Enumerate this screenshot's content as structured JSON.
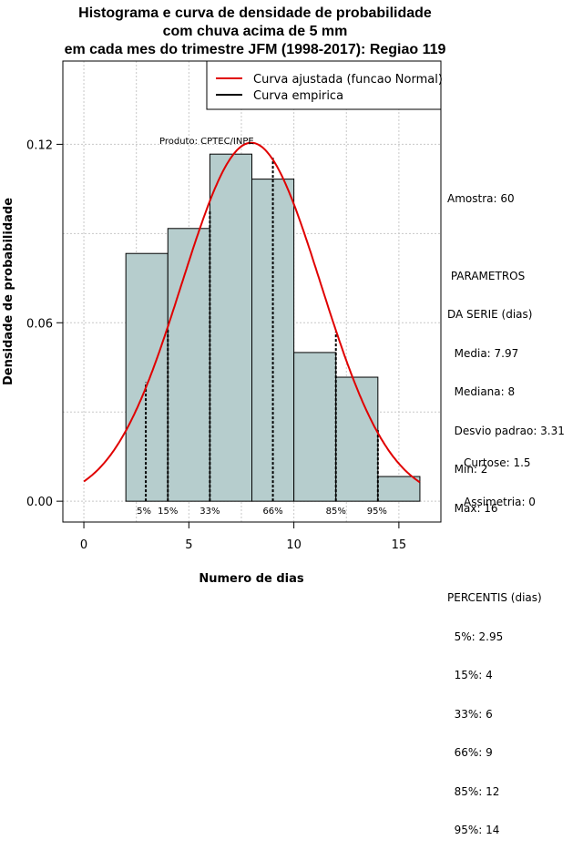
{
  "chart_data": {
    "type": "bar",
    "title": [
      "Histograma e curva de densidade de probabilidade",
      "com chuva acima de 5 mm",
      "em cada mes do trimestre JFM (1998-2017): Regiao 119"
    ],
    "xlabel": "Numero de dias",
    "ylabel": "Densidade de probabilidade",
    "xlim": [
      -1,
      17
    ],
    "ylim": [
      -0.007,
      0.148
    ],
    "x_ticks": [
      0,
      5,
      10,
      15
    ],
    "y_ticks": [
      0.0,
      0.06,
      0.12
    ],
    "y_tick_labels": [
      "0.00",
      "0.06",
      "0.12"
    ],
    "grid": true,
    "bins": [
      {
        "from": 2,
        "to": 4,
        "density": 0.0833
      },
      {
        "from": 4,
        "to": 6,
        "density": 0.0917
      },
      {
        "from": 6,
        "to": 8,
        "density": 0.1167
      },
      {
        "from": 8,
        "to": 10,
        "density": 0.1083
      },
      {
        "from": 10,
        "to": 12,
        "density": 0.05
      },
      {
        "from": 12,
        "to": 14,
        "density": 0.0417
      },
      {
        "from": 14,
        "to": 16,
        "density": 0.0083
      }
    ],
    "bar_color": "#b6cdcd",
    "series": [
      {
        "name": "Curva ajustada (funcao Normal)",
        "kind": "normal",
        "mean": 7.97,
        "sd": 3.31,
        "x_range": [
          0,
          16
        ],
        "color": "#e00000"
      },
      {
        "name": "Curva empirica",
        "color": "#000000"
      }
    ],
    "legend_position": "top-right",
    "percentile_lines": [
      {
        "label": "5%",
        "x": 2.95,
        "height": 0.04
      },
      {
        "label": "15%",
        "x": 4,
        "height": 0.058
      },
      {
        "label": "33%",
        "x": 6,
        "height": 0.098
      },
      {
        "label": "66%",
        "x": 9,
        "height": 0.1155
      },
      {
        "label": "85%",
        "x": 12,
        "height": 0.057
      },
      {
        "label": "95%",
        "x": 14,
        "height": 0.024
      }
    ],
    "annotation": "Produto: CPTEC/INPE"
  },
  "stats_panel": {
    "amostra": "Amostra: 60",
    "params_title_1": " PARAMETROS",
    "params_title_2": "DA SERIE (dias)",
    "params": [
      "  Media: 7.97",
      "  Mediana: 8",
      "  Desvio padrao: 3.31",
      "  Min: 2",
      "  Max: 16"
    ],
    "percentis_title": "PERCENTIS (dias)",
    "percentis": [
      "  5%: 2.95",
      "  15%: 4",
      "  33%: 6",
      "  66%: 9",
      "  85%: 12",
      "  95%: 14"
    ],
    "shape": [
      "Curtose: 1.5",
      "Assimetria: 0"
    ]
  }
}
